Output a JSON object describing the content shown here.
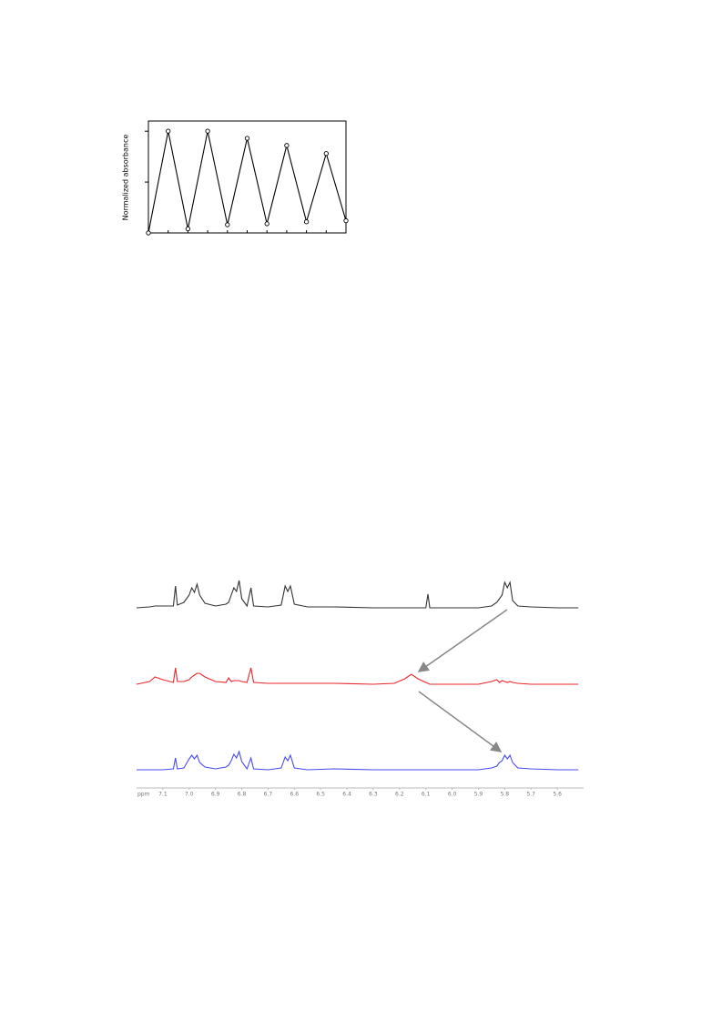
{
  "chart_data": [
    {
      "type": "line",
      "ylabel": "Normalized absorbance",
      "markers": true,
      "color": "#000000",
      "x": [
        0,
        1,
        2,
        3,
        4,
        5,
        6,
        7,
        8,
        9,
        10
      ],
      "values": [
        0,
        1.0,
        0.04,
        1.0,
        0.08,
        0.93,
        0.09,
        0.86,
        0.11,
        0.78,
        0.12
      ],
      "xlim": [
        0,
        10
      ],
      "xticks": [
        0,
        1,
        2,
        3,
        4,
        5,
        6,
        7,
        8,
        9,
        10
      ],
      "ylim": [
        0,
        1.1
      ],
      "yticks": [
        0.5,
        1
      ]
    },
    {
      "type": "line",
      "xlabel": "ppm",
      "x": [
        7.2,
        7.15,
        7.13,
        7.1,
        7.06,
        7.052,
        7.045,
        7.02,
        7.0,
        6.99,
        6.98,
        6.97,
        6.96,
        6.94,
        6.9,
        6.86,
        6.85,
        6.84,
        6.83,
        6.82,
        6.81,
        6.8,
        6.78,
        6.765,
        6.755,
        6.7,
        6.65,
        6.635,
        6.625,
        6.615,
        6.6,
        6.55,
        6.45,
        6.3,
        6.22,
        6.18,
        6.155,
        6.13,
        6.1,
        6.092,
        6.085,
        6.0,
        5.9,
        5.85,
        5.83,
        5.82,
        5.81,
        5.8,
        5.79,
        5.78,
        5.77,
        5.75,
        5.7,
        5.6,
        5.52
      ],
      "series": [
        {
          "color": "#333333",
          "values": [
            0,
            1,
            2,
            2,
            2,
            24,
            3,
            6,
            14,
            22,
            17,
            26,
            14,
            5,
            2,
            4,
            6,
            14,
            22,
            18,
            30,
            10,
            2,
            22,
            2,
            1,
            3,
            24,
            18,
            24,
            4,
            1,
            1,
            0,
            0,
            0,
            0,
            0,
            0,
            15,
            0,
            0,
            0,
            2,
            6,
            10,
            14,
            28,
            22,
            28,
            8,
            2,
            1,
            0,
            0
          ]
        },
        {
          "color": "#e8262b",
          "values": [
            0,
            3,
            8,
            5,
            2,
            18,
            3,
            3,
            5,
            8,
            10,
            12,
            12,
            8,
            3,
            2,
            7,
            3,
            4,
            4,
            4,
            3,
            2,
            18,
            2,
            1,
            1,
            1,
            1,
            1,
            1,
            1,
            1,
            0,
            1,
            6,
            11,
            6,
            2,
            1,
            0,
            0,
            0,
            3,
            5,
            2,
            4,
            3,
            2,
            3,
            2,
            1,
            0,
            0,
            0
          ]
        },
        {
          "color": "#4a4af0",
          "values": [
            0,
            0,
            0,
            0,
            1,
            13,
            1,
            2,
            12,
            16,
            12,
            16,
            8,
            3,
            1,
            3,
            5,
            10,
            17,
            13,
            20,
            9,
            1,
            13,
            1,
            0,
            2,
            14,
            10,
            16,
            2,
            0,
            1,
            0,
            0,
            0,
            0,
            0,
            0,
            0,
            0,
            0,
            0,
            2,
            4,
            8,
            10,
            16,
            12,
            16,
            8,
            2,
            1,
            0,
            0
          ]
        }
      ],
      "xlim": [
        7.2,
        5.5
      ],
      "xticks": [
        7.1,
        {
          "value": 7.0,
          "label": "7.0"
        },
        6.9,
        6.8,
        6.7,
        6.6,
        6.5,
        6.4,
        6.3,
        6.2,
        6.1,
        {
          "value": 6.0,
          "label": "6.0"
        },
        5.9,
        5.8,
        5.7,
        5.6
      ]
    }
  ]
}
